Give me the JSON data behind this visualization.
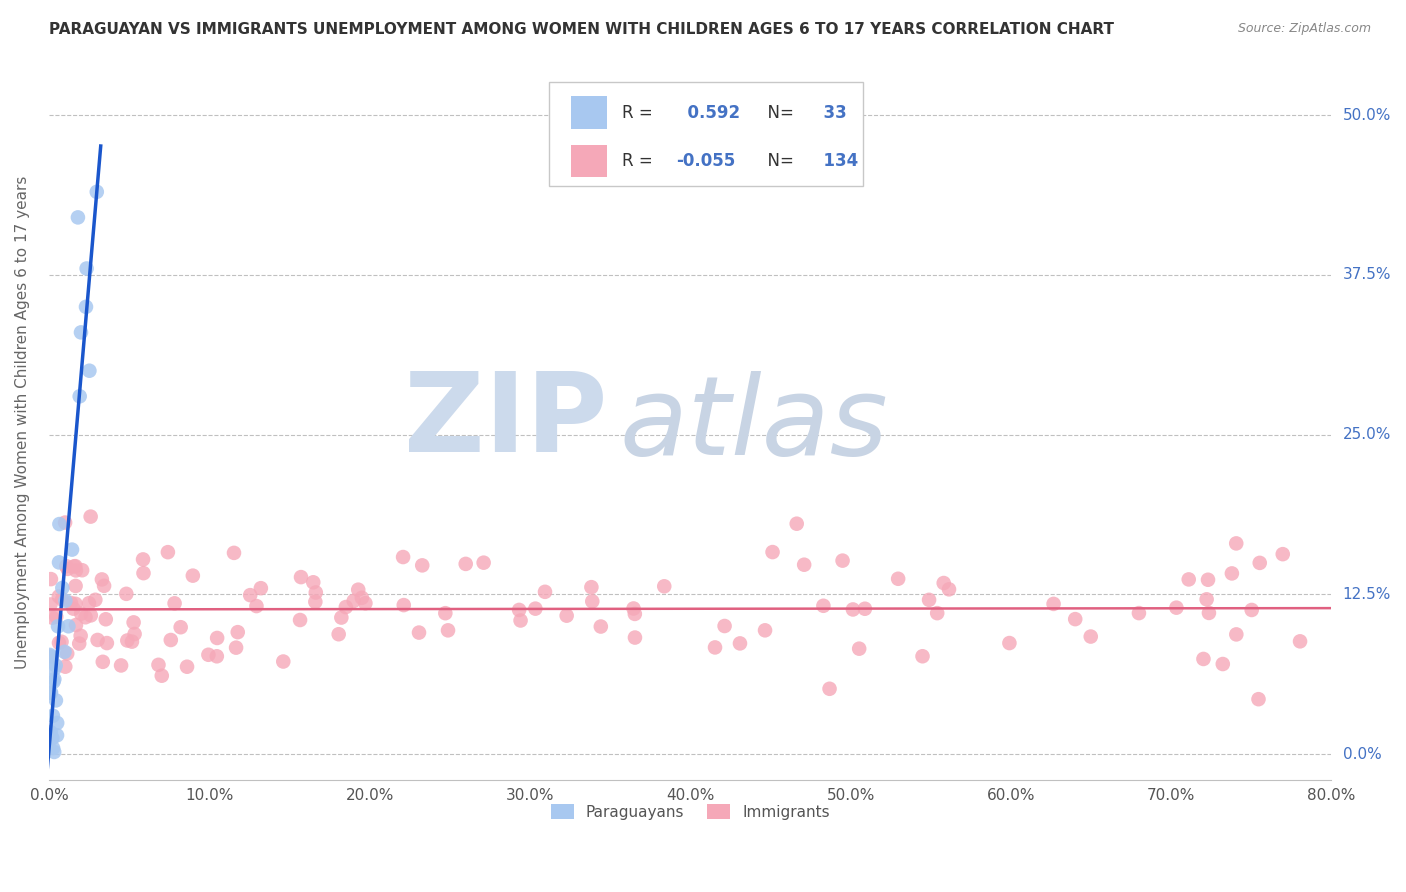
{
  "title": "PARAGUAYAN VS IMMIGRANTS UNEMPLOYMENT AMONG WOMEN WITH CHILDREN AGES 6 TO 17 YEARS CORRELATION CHART",
  "source": "Source: ZipAtlas.com",
  "ylabel": "Unemployment Among Women with Children Ages 6 to 17 years",
  "xlim": [
    0.0,
    0.8
  ],
  "ylim": [
    -0.02,
    0.54
  ],
  "xtick_labels": [
    "0.0%",
    "10.0%",
    "20.0%",
    "30.0%",
    "40.0%",
    "50.0%",
    "60.0%",
    "70.0%",
    "80.0%"
  ],
  "xtick_vals": [
    0.0,
    0.1,
    0.2,
    0.3,
    0.4,
    0.5,
    0.6,
    0.7,
    0.8
  ],
  "ytick_labels": [
    "0.0%",
    "12.5%",
    "25.0%",
    "37.5%",
    "50.0%"
  ],
  "ytick_vals": [
    0.0,
    0.125,
    0.25,
    0.375,
    0.5
  ],
  "paraguayan_R": 0.592,
  "paraguayan_N": 33,
  "immigrant_R": -0.055,
  "immigrant_N": 134,
  "paraguayan_color": "#a8c8f0",
  "paraguayan_line_color": "#1a56cc",
  "immigrant_color": "#f5a8b8",
  "immigrant_line_color": "#e06080",
  "watermark_zip_color": "#ccdaec",
  "watermark_atlas_color": "#c8d4e4",
  "legend_label_paraguayan": "Paraguayans",
  "legend_label_immigrant": "Immigrants"
}
